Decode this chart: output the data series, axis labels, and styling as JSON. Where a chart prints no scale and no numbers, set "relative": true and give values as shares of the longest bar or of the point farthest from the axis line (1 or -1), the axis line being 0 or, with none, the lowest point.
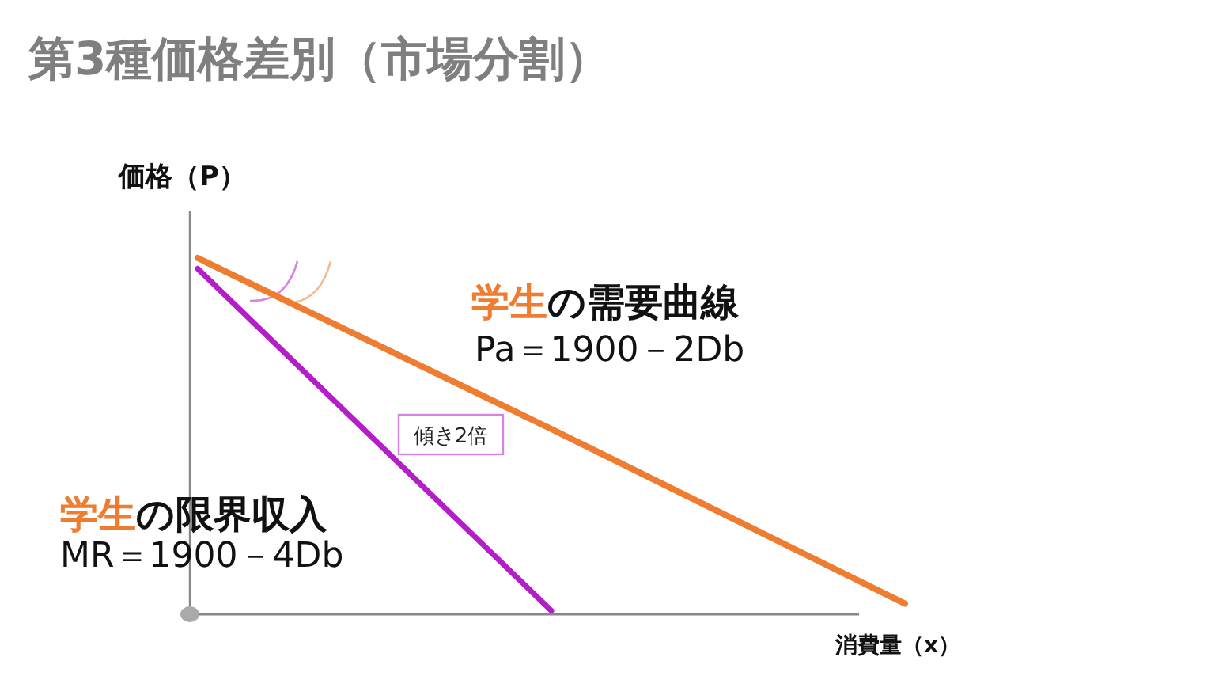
{
  "chart_data": {
    "type": "line",
    "title": "第3種価格差別（市場分割）",
    "xlabel": "消費量（x）",
    "ylabel": "価格（P）",
    "categories": [
      null,
      null,
      null
    ],
    "relative": true,
    "series": [
      {
        "name": "学生の需要曲線",
        "color": "#ee7d31",
        "values": [
          1,
          0.52,
          0.03
        ]
      },
      {
        "name": "学生の限界収入",
        "color": "#b41ec8",
        "values": [
          0.97,
          0.01,
          null
        ]
      }
    ],
    "annotations": [
      "Pa＝1900－2Db",
      "MR＝1900－4Db",
      "傾き2倍"
    ]
  }
}
